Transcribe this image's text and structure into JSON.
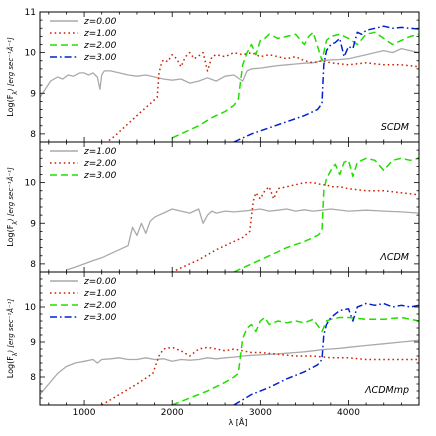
{
  "xlabel": "λ [Å]",
  "x_ticks": [
    "1000",
    "2000",
    "3000",
    "4000"
  ],
  "chart_data": [
    {
      "type": "line",
      "label": "SCDM",
      "ylabel": "Log(F",
      "ylabel_sub": "λ",
      "ylabel_units": ") [erg sec⁻¹Å⁻¹]",
      "xlim": [
        500,
        4800
      ],
      "ylim": [
        7.8,
        11.0
      ],
      "y_ticks": [
        {
          "v": 8,
          "t": "8"
        },
        {
          "v": 9,
          "t": "9"
        },
        {
          "v": 10,
          "t": "10"
        },
        {
          "v": 11,
          "t": "11"
        }
      ],
      "legend": {
        "placement": "top-left"
      },
      "series": [
        {
          "name": "z=0.00",
          "color": "#aaaaaa",
          "dash": "solid",
          "x": [
            500,
            620,
            700,
            760,
            820,
            880,
            950,
            1000,
            1050,
            1100,
            1150,
            1180,
            1200,
            1230,
            1300,
            1400,
            1500,
            1600,
            1700,
            1800,
            1900,
            2000,
            2100,
            2200,
            2300,
            2400,
            2500,
            2600,
            2700,
            2800,
            2850,
            2900,
            3000,
            3100,
            3200,
            3300,
            3400,
            3500,
            3600,
            3700,
            3800,
            3900,
            4000,
            4100,
            4200,
            4300,
            4400,
            4500,
            4600,
            4700,
            4800
          ],
          "y": [
            8.9,
            9.3,
            9.4,
            9.35,
            9.45,
            9.42,
            9.5,
            9.5,
            9.45,
            9.5,
            9.4,
            9.1,
            9.45,
            9.55,
            9.55,
            9.5,
            9.45,
            9.42,
            9.45,
            9.4,
            9.35,
            9.32,
            9.35,
            9.25,
            9.3,
            9.38,
            9.3,
            9.42,
            9.45,
            9.3,
            9.55,
            9.6,
            9.62,
            9.65,
            9.68,
            9.7,
            9.72,
            9.74,
            9.75,
            9.8,
            9.82,
            9.83,
            9.85,
            9.9,
            9.95,
            10.0,
            10.05,
            10.0,
            10.1,
            10.05,
            10.0
          ]
        },
        {
          "name": "z=1.00",
          "color": "#cc2200",
          "dash": "dot",
          "x": [
            1200,
            1350,
            1500,
            1650,
            1780,
            1830,
            1850,
            1880,
            1900,
            1950,
            2000,
            2050,
            2100,
            2150,
            2200,
            2250,
            2300,
            2350,
            2400,
            2450,
            2500,
            2600,
            2700,
            2800,
            2900,
            3000,
            3100,
            3200,
            3300,
            3400,
            3500,
            3600,
            3700,
            3800,
            4000,
            4200,
            4400,
            4600,
            4800
          ],
          "y": [
            7.7,
            7.95,
            8.25,
            8.55,
            8.8,
            8.9,
            9.5,
            9.75,
            9.82,
            9.78,
            9.95,
            9.85,
            9.65,
            9.9,
            10.0,
            9.85,
            9.92,
            10.0,
            9.55,
            9.9,
            9.95,
            9.9,
            10.0,
            9.95,
            10.0,
            9.9,
            9.95,
            9.9,
            9.85,
            9.9,
            9.8,
            9.75,
            9.8,
            9.75,
            9.7,
            9.75,
            9.7,
            9.7,
            9.65
          ]
        },
        {
          "name": "z=2.00",
          "color": "#22dd00",
          "dash": "dash",
          "x": [
            2000,
            2150,
            2300,
            2450,
            2600,
            2700,
            2750,
            2800,
            2850,
            2900,
            2950,
            3000,
            3050,
            3100,
            3200,
            3300,
            3400,
            3500,
            3550,
            3600,
            3700,
            3750,
            3800,
            3900,
            4000,
            4100,
            4200,
            4300,
            4400,
            4500,
            4600,
            4700,
            4800
          ],
          "y": [
            7.9,
            8.05,
            8.2,
            8.4,
            8.55,
            8.7,
            8.85,
            9.7,
            10.0,
            10.2,
            9.95,
            10.3,
            10.35,
            10.45,
            10.35,
            10.4,
            10.45,
            10.2,
            10.4,
            10.5,
            9.8,
            10.3,
            10.4,
            10.45,
            10.35,
            10.2,
            10.45,
            10.5,
            10.35,
            10.2,
            10.3,
            10.4,
            10.45
          ]
        },
        {
          "name": "z=3.00",
          "color": "#0022cc",
          "dash": "dashdot",
          "x": [
            2700,
            2900,
            3100,
            3300,
            3500,
            3650,
            3700,
            3720,
            3750,
            3800,
            3850,
            3900,
            3950,
            4000,
            4050,
            4100,
            4150,
            4200,
            4300,
            4400,
            4500,
            4600,
            4700,
            4800
          ],
          "y": [
            7.8,
            8.0,
            8.15,
            8.3,
            8.45,
            8.6,
            8.75,
            9.7,
            10.05,
            10.2,
            10.25,
            10.35,
            9.9,
            10.15,
            10.1,
            10.5,
            10.45,
            10.55,
            10.6,
            10.65,
            10.6,
            10.62,
            10.6,
            10.58
          ]
        }
      ]
    },
    {
      "type": "line",
      "label": "ΛCDM",
      "ylabel": "Log(F",
      "ylabel_sub": "λ",
      "ylabel_units": ") [erg sec⁻¹Å⁻¹]",
      "xlim": [
        500,
        4800
      ],
      "ylim": [
        7.8,
        11.0
      ],
      "y_ticks": [
        {
          "v": 8,
          "t": "8"
        },
        {
          "v": 9,
          "t": "9"
        },
        {
          "v": 10,
          "t": "10"
        }
      ],
      "legend": {
        "placement": "top-left"
      },
      "series": [
        {
          "name": "z=1.00",
          "color": "#aaaaaa",
          "dash": "solid",
          "x": [
            800,
            900,
            1000,
            1100,
            1200,
            1300,
            1400,
            1500,
            1550,
            1600,
            1650,
            1700,
            1750,
            1800,
            1850,
            1900,
            2000,
            2100,
            2200,
            2300,
            2350,
            2400,
            2450,
            2500,
            2600,
            2700,
            2800,
            2900,
            3000,
            3100,
            3200,
            3300,
            3400,
            3500,
            3600,
            3700,
            3800,
            4000,
            4200,
            4400,
            4600,
            4800
          ],
          "y": [
            7.85,
            7.92,
            8.0,
            8.08,
            8.15,
            8.25,
            8.35,
            8.45,
            8.9,
            8.7,
            9.0,
            8.75,
            9.05,
            9.15,
            9.2,
            9.25,
            9.35,
            9.3,
            9.25,
            9.35,
            9.0,
            9.2,
            9.3,
            9.25,
            9.3,
            9.28,
            9.3,
            9.32,
            9.35,
            9.3,
            9.32,
            9.35,
            9.3,
            9.33,
            9.3,
            9.32,
            9.35,
            9.3,
            9.32,
            9.3,
            9.28,
            9.25
          ]
        },
        {
          "name": "z=2.00",
          "color": "#cc2200",
          "dash": "dot",
          "x": [
            1900,
            2100,
            2300,
            2500,
            2700,
            2800,
            2880,
            2920,
            2950,
            3000,
            3050,
            3100,
            3150,
            3200,
            3300,
            3400,
            3500,
            3600,
            3700,
            3750,
            3800,
            3900,
            4000,
            4200,
            4400,
            4600,
            4800
          ],
          "y": [
            7.7,
            7.9,
            8.1,
            8.35,
            8.55,
            8.65,
            8.8,
            9.55,
            9.75,
            9.6,
            9.8,
            9.9,
            9.6,
            9.85,
            9.9,
            9.95,
            10.0,
            10.0,
            9.95,
            9.95,
            9.9,
            9.9,
            9.85,
            9.8,
            9.8,
            9.75,
            9.7
          ]
        },
        {
          "name": "z=3.00",
          "color": "#22dd00",
          "dash": "dash",
          "x": [
            2700,
            2900,
            3100,
            3300,
            3500,
            3650,
            3700,
            3720,
            3750,
            3800,
            3850,
            3900,
            3950,
            4000,
            4050,
            4100,
            4200,
            4300,
            4400,
            4500,
            4600,
            4700,
            4800
          ],
          "y": [
            7.8,
            8.0,
            8.2,
            8.4,
            8.55,
            8.7,
            8.8,
            9.8,
            10.1,
            10.3,
            10.45,
            10.2,
            10.5,
            10.55,
            10.15,
            10.5,
            10.6,
            10.55,
            10.3,
            10.55,
            10.6,
            10.55,
            10.6
          ]
        }
      ]
    },
    {
      "type": "line",
      "label": "ΛCDMmp",
      "ylabel": "Log(F",
      "ylabel_sub": "λ",
      "ylabel_units": ") [erg sec⁻¹Å⁻¹]",
      "xlim": [
        500,
        4800
      ],
      "ylim": [
        7.2,
        11.0
      ],
      "y_ticks": [
        {
          "v": 8,
          "t": "8"
        },
        {
          "v": 9,
          "t": "9"
        },
        {
          "v": 10,
          "t": "10"
        }
      ],
      "legend": {
        "placement": "top-left"
      },
      "series": [
        {
          "name": "z=0.00",
          "color": "#aaaaaa",
          "dash": "solid",
          "x": [
            500,
            600,
            700,
            800,
            900,
            1000,
            1100,
            1150,
            1200,
            1300,
            1400,
            1500,
            1600,
            1700,
            1800,
            1900,
            2000,
            2100,
            2200,
            2300,
            2400,
            2500,
            2600,
            2700,
            2800,
            2900,
            3000,
            3100,
            3200,
            3300,
            3400,
            3500,
            3600,
            3700,
            3800,
            3900,
            4000,
            4200,
            4400,
            4600,
            4800
          ],
          "y": [
            7.5,
            7.8,
            8.1,
            8.3,
            8.4,
            8.45,
            8.5,
            8.4,
            8.5,
            8.52,
            8.55,
            8.5,
            8.5,
            8.55,
            8.5,
            8.52,
            8.45,
            8.5,
            8.48,
            8.5,
            8.55,
            8.52,
            8.55,
            8.57,
            8.6,
            8.62,
            8.63,
            8.65,
            8.66,
            8.68,
            8.7,
            8.72,
            8.75,
            8.78,
            8.8,
            8.82,
            8.85,
            8.9,
            8.95,
            9.0,
            9.05
          ]
        },
        {
          "name": "z=1.00",
          "color": "#cc2200",
          "dash": "dot",
          "x": [
            1200,
            1400,
            1600,
            1780,
            1850,
            1900,
            2000,
            2100,
            2200,
            2300,
            2400,
            2500,
            2600,
            2700,
            2800,
            2900,
            3000,
            3200,
            3400,
            3600,
            3800,
            4000,
            4200,
            4400,
            4600,
            4800
          ],
          "y": [
            7.2,
            7.5,
            7.8,
            8.1,
            8.6,
            8.8,
            8.85,
            8.75,
            8.6,
            8.8,
            8.85,
            8.8,
            8.75,
            8.8,
            8.75,
            8.7,
            8.7,
            8.65,
            8.6,
            8.6,
            8.55,
            8.55,
            8.5,
            8.5,
            8.5,
            8.5
          ]
        },
        {
          "name": "z=2.00",
          "color": "#22dd00",
          "dash": "dash",
          "x": [
            2000,
            2200,
            2400,
            2600,
            2700,
            2750,
            2800,
            2850,
            2900,
            2950,
            3000,
            3050,
            3100,
            3200,
            3300,
            3400,
            3500,
            3600,
            3700,
            3750,
            3800,
            3900,
            4000,
            4200,
            4400,
            4600,
            4800
          ],
          "y": [
            7.2,
            7.4,
            7.6,
            7.85,
            8.0,
            8.1,
            9.1,
            9.4,
            9.5,
            9.3,
            9.6,
            9.7,
            9.5,
            9.6,
            9.55,
            9.6,
            9.55,
            9.65,
            9.3,
            9.6,
            9.65,
            9.7,
            9.7,
            9.65,
            9.65,
            9.7,
            9.6
          ]
        },
        {
          "name": "z=3.00",
          "color": "#0022cc",
          "dash": "dashdot",
          "x": [
            2700,
            2900,
            3100,
            3300,
            3500,
            3650,
            3700,
            3720,
            3750,
            3800,
            3900,
            4000,
            4050,
            4100,
            4150,
            4200,
            4300,
            4400,
            4500,
            4600,
            4700,
            4800
          ],
          "y": [
            7.2,
            7.5,
            7.7,
            7.95,
            8.15,
            8.35,
            8.5,
            9.2,
            9.5,
            9.7,
            9.9,
            9.95,
            9.6,
            10.0,
            10.05,
            10.1,
            10.05,
            10.1,
            10.0,
            10.05,
            10.0,
            10.05
          ]
        }
      ]
    }
  ]
}
